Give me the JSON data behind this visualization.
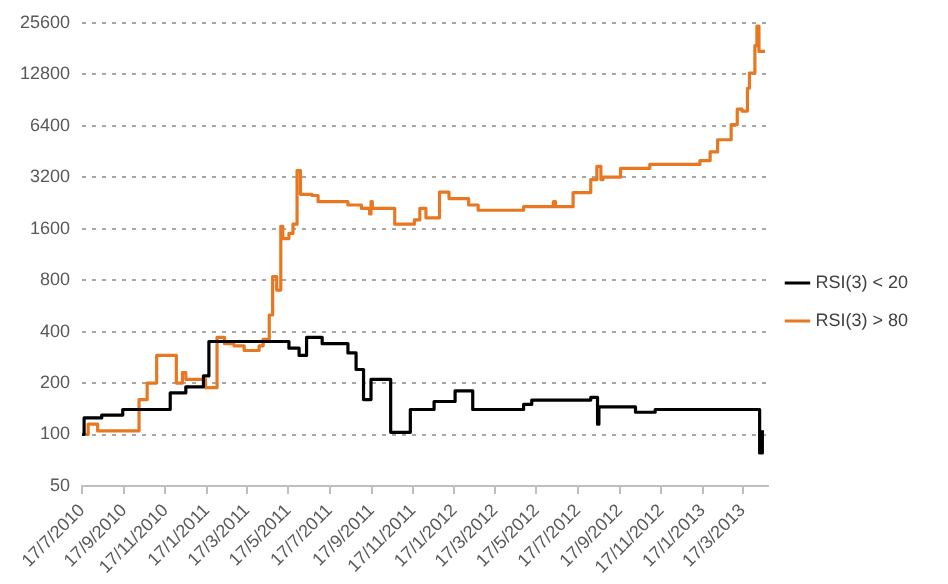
{
  "chart_data": {
    "type": "step",
    "log": "y",
    "grid": "y",
    "legend": "right",
    "marker": "none",
    "line_style": "solid",
    "xlim": [
      "2010-07-17",
      "2013-04-24"
    ],
    "ylim": [
      50,
      25600
    ],
    "yticks": [
      50,
      100,
      200,
      400,
      800,
      1600,
      3200,
      6400,
      12800,
      25600
    ],
    "xticks": [
      {
        "value": "2010-07-17",
        "label": "17/7/2010"
      },
      {
        "value": "2010-09-17",
        "label": "17/9/2010"
      },
      {
        "value": "2010-11-17",
        "label": "17/11/2010"
      },
      {
        "value": "2011-01-17",
        "label": "17/1/2011"
      },
      {
        "value": "2011-03-17",
        "label": "17/3/2011"
      },
      {
        "value": "2011-05-17",
        "label": "17/5/2011"
      },
      {
        "value": "2011-07-17",
        "label": "17/7/2011"
      },
      {
        "value": "2011-09-17",
        "label": "17/9/2011"
      },
      {
        "value": "2011-11-17",
        "label": "17/11/2011"
      },
      {
        "value": "2012-01-17",
        "label": "17/1/2012"
      },
      {
        "value": "2012-03-17",
        "label": "17/3/2012"
      },
      {
        "value": "2012-05-17",
        "label": "17/5/2012"
      },
      {
        "value": "2012-07-17",
        "label": "17/7/2012"
      },
      {
        "value": "2012-09-17",
        "label": "17/9/2012"
      },
      {
        "value": "2012-11-17",
        "label": "17/11/2012"
      },
      {
        "value": "2013-01-17",
        "label": "17/1/2013"
      },
      {
        "value": "2013-03-17",
        "label": "17/3/2013"
      }
    ],
    "series": [
      {
        "name": "RSI(3) < 20",
        "color": "#000000",
        "x": [
          "2010-07-17",
          "2010-07-20",
          "2010-08-15",
          "2010-09-15",
          "2010-11-09",
          "2010-11-24",
          "2010-12-17",
          "2011-01-12",
          "2011-01-20",
          "2011-05-18",
          "2011-06-02",
          "2011-06-13",
          "2011-07-06",
          "2011-08-13",
          "2011-08-25",
          "2011-09-05",
          "2011-09-16",
          "2011-10-15",
          "2011-11-13",
          "2011-12-18",
          "2012-01-18",
          "2012-02-13",
          "2012-04-28",
          "2012-05-10",
          "2012-08-05",
          "2012-08-15",
          "2012-08-17",
          "2012-10-10",
          "2012-11-08",
          "2013-04-09",
          "2013-04-11",
          "2013-04-15"
        ],
        "values": [
          100,
          125,
          130,
          140,
          140,
          175,
          190,
          220,
          350,
          320,
          290,
          370,
          340,
          300,
          240,
          160,
          210,
          103,
          140,
          156,
          180,
          140,
          150,
          159,
          165,
          115,
          145,
          135,
          140,
          140,
          78,
          106
        ]
      },
      {
        "name": "RSI(3) > 80",
        "color": "#e87722",
        "x": [
          "2010-07-17",
          "2010-07-26",
          "2010-08-09",
          "2010-10-04",
          "2010-10-09",
          "2010-10-21",
          "2010-11-04",
          "2010-12-03",
          "2010-12-12",
          "2010-12-17",
          "2011-01-15",
          "2011-02-01",
          "2011-02-12",
          "2011-02-26",
          "2011-03-13",
          "2011-04-04",
          "2011-04-10",
          "2011-04-19",
          "2011-04-24",
          "2011-04-30",
          "2011-05-06",
          "2011-05-09",
          "2011-05-18",
          "2011-05-24",
          "2011-05-30",
          "2011-06-04",
          "2011-06-21",
          "2011-06-30",
          "2011-08-04",
          "2011-08-13",
          "2011-09-02",
          "2011-09-14",
          "2011-09-16",
          "2011-09-18",
          "2011-10-21",
          "2011-11-19",
          "2011-11-27",
          "2011-12-06",
          "2011-12-18",
          "2011-12-26",
          "2012-01-09",
          "2012-02-07",
          "2012-02-21",
          "2012-04-28",
          "2012-06-11",
          "2012-06-14",
          "2012-07-10",
          "2012-07-24",
          "2012-08-05",
          "2012-08-14",
          "2012-08-20",
          "2012-08-23",
          "2012-09-18",
          "2012-10-31",
          "2013-01-04",
          "2013-01-13",
          "2013-01-28",
          "2013-02-08",
          "2013-02-22",
          "2013-02-28",
          "2013-03-09",
          "2013-03-16",
          "2013-03-24",
          "2013-03-27",
          "2013-04-04",
          "2013-04-07",
          "2013-04-10",
          "2013-04-19"
        ],
        "values": [
          100,
          115,
          105,
          105,
          160,
          200,
          290,
          200,
          230,
          210,
          188,
          370,
          340,
          330,
          310,
          330,
          360,
          500,
          840,
          700,
          1650,
          1400,
          1500,
          1700,
          3500,
          2540,
          2500,
          2300,
          2300,
          2200,
          2100,
          1950,
          2300,
          2100,
          1700,
          1800,
          2100,
          1850,
          1850,
          2620,
          2400,
          2200,
          2050,
          2150,
          2300,
          2150,
          2600,
          2600,
          3100,
          3700,
          3100,
          3200,
          3600,
          3800,
          3800,
          4000,
          4500,
          5300,
          5300,
          6500,
          8000,
          7800,
          10600,
          13000,
          18800,
          24500,
          17400,
          17400
        ]
      }
    ]
  }
}
